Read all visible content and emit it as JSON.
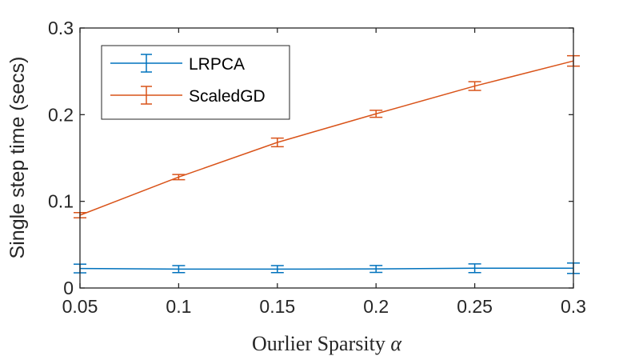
{
  "chart_data": {
    "type": "line",
    "title": "",
    "xlabel": "Ourlier Sparsity",
    "xlabel_symbol": "α",
    "ylabel": "Single step time (secs)",
    "x": [
      0.05,
      0.1,
      0.15,
      0.2,
      0.25,
      0.3
    ],
    "x_tick_labels": [
      "0.05",
      "0.1",
      "0.15",
      "0.2",
      "0.25",
      "0.3"
    ],
    "y_ticks": [
      0,
      0.1,
      0.2,
      0.3
    ],
    "y_tick_labels": [
      "0",
      "0.1",
      "0.2",
      "0.3"
    ],
    "xlim": [
      0.05,
      0.3
    ],
    "ylim": [
      0,
      0.3
    ],
    "grid": false,
    "legend_position": "top-left",
    "series": [
      {
        "name": "LRPCA",
        "color": "#0072bd",
        "values": [
          0.0225,
          0.0218,
          0.0218,
          0.022,
          0.0228,
          0.0228
        ],
        "error": [
          0.005,
          0.004,
          0.004,
          0.004,
          0.005,
          0.006
        ]
      },
      {
        "name": "ScaledGD",
        "color": "#d95319",
        "values": [
          0.084,
          0.128,
          0.168,
          0.201,
          0.233,
          0.262
        ],
        "error": [
          0.003,
          0.003,
          0.005,
          0.004,
          0.005,
          0.006
        ]
      }
    ]
  }
}
